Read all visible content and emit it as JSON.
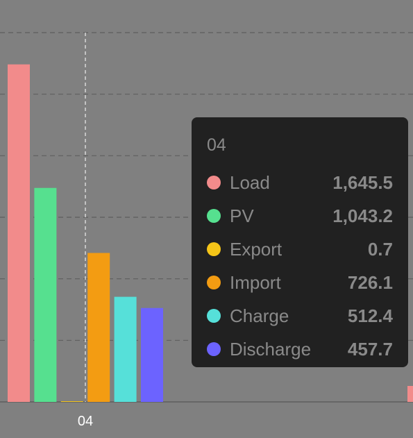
{
  "chart_data": {
    "type": "bar",
    "categories": [
      "04"
    ],
    "ylim": [
      0,
      1800
    ],
    "series": [
      {
        "name": "Load",
        "color": "#f28b8b",
        "values": [
          1645.5
        ]
      },
      {
        "name": "PV",
        "color": "#56e08f",
        "values": [
          1043.2
        ]
      },
      {
        "name": "Export",
        "color": "#f5c518",
        "values": [
          0.7
        ]
      },
      {
        "name": "Import",
        "color": "#f39c12",
        "values": [
          726.1
        ]
      },
      {
        "name": "Charge",
        "color": "#56e0d9",
        "values": [
          512.4
        ]
      },
      {
        "name": "Discharge",
        "color": "#6c63ff",
        "values": [
          457.7
        ]
      }
    ],
    "grid": true,
    "legend": "none"
  },
  "tooltip": {
    "title": "04",
    "rows": [
      {
        "name": "Load",
        "value": "1,645.5",
        "color": "#f28b8b"
      },
      {
        "name": "PV",
        "value": "1,043.2",
        "color": "#56e08f"
      },
      {
        "name": "Export",
        "value": "0.7",
        "color": "#f5c518"
      },
      {
        "name": "Import",
        "value": "726.1",
        "color": "#f39c12"
      },
      {
        "name": "Charge",
        "value": "512.4",
        "color": "#56e0d9"
      },
      {
        "name": "Discharge",
        "value": "457.7",
        "color": "#6c63ff"
      }
    ]
  }
}
